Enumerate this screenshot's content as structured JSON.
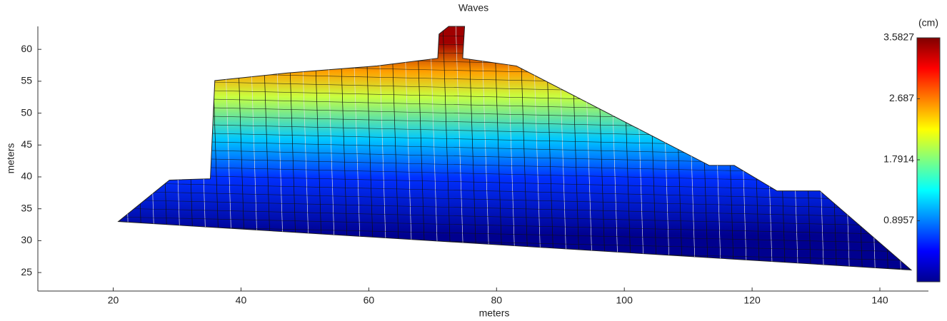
{
  "chart_data": {
    "type": "surface",
    "title": "Waves",
    "x_label": "meters",
    "y_label": "meters",
    "xlim": [
      8.2,
      147.6
    ],
    "ylim": [
      22.1,
      63.6
    ],
    "xticks": [
      20,
      40,
      60,
      80,
      100,
      120,
      140
    ],
    "yticks": [
      25,
      30,
      35,
      40,
      45,
      50,
      55,
      60
    ],
    "outline": {
      "x": [
        20.8,
        28.8,
        35.2,
        35.9,
        47.3,
        61.3,
        70.8,
        71.0,
        72.5,
        75.0,
        74.7,
        83.1,
        113.3,
        117.2,
        123.9,
        130.6,
        144.9
      ],
      "y": [
        33.0,
        39.5,
        39.7,
        55.1,
        56.3,
        57.4,
        58.6,
        62.4,
        63.6,
        63.6,
        58.6,
        57.4,
        41.8,
        41.8,
        37.8,
        37.8,
        25.4
      ]
    },
    "colorbar": {
      "label": "(cm)",
      "clim": [
        0,
        3.5827
      ],
      "ticks": [
        0.8957,
        1.7914,
        2.687,
        3.5827
      ]
    }
  }
}
